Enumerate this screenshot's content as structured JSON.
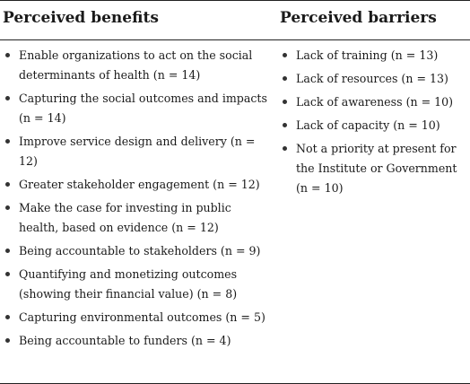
{
  "headers": {
    "benefits": "Perceived benefits",
    "barriers": "Perceived barriers"
  },
  "benefits": [
    "Enable organizations to act on the social determinants of health (n = 14)",
    "Capturing the social outcomes and impacts (n = 14)",
    "Improve service design and delivery (n = 12)",
    "Greater stakeholder engagement (n = 12)",
    "Make the case for investing in public health, based on evidence (n = 12)",
    "Being accountable to stakeholders (n = 9)",
    "Quantifying and monetizing outcomes (showing their financial value) (n = 8)",
    "Capturing environmental outcomes (n = 5)",
    "Being accountable to funders (n = 4)"
  ],
  "barriers": [
    "Lack of training (n = 13)",
    "Lack of resources (n = 13)",
    "Lack of awareness (n = 10)",
    "Lack of capacity (n = 10)",
    "Not a priority at present for the Institute or Government (n = 10)"
  ]
}
